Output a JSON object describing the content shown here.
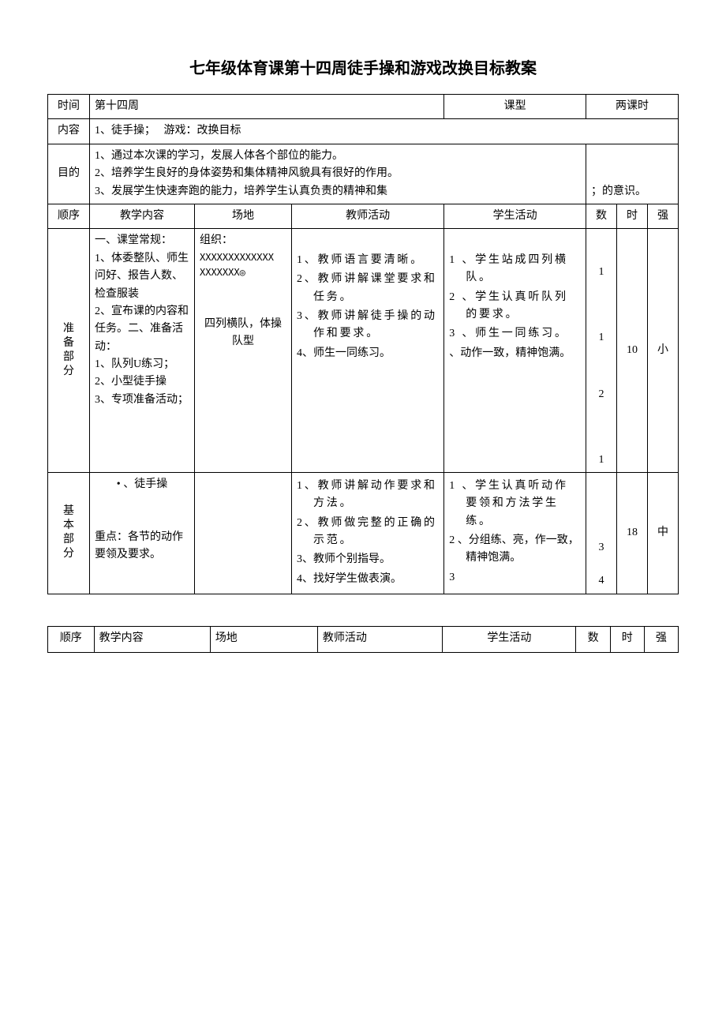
{
  "title": "七年级体育课第十四周徒手操和游戏改换目标教案",
  "header": {
    "time_label": "时间",
    "time_value": "第十四周",
    "type_label": "课型",
    "type_value": "两课时",
    "content_label": "内容",
    "content_value_1": "1、徒手操；",
    "content_value_2": "游戏：改换目标",
    "goal_label": "目的",
    "goal_1": "1、通过本次课的学习，发展人体各个部位的能力。",
    "goal_2": "2、培养学生良好的身体姿势和集体精神风貌具有很好的作用。",
    "goal_3": "3、发展学生快速奔跑的能力，培养学生认真负责的精神和集",
    "goal_suffix": "；的意识。"
  },
  "cols": {
    "order": "顺序",
    "content": "教学内容",
    "field": "场地",
    "teacher": "教师活动",
    "student": "学生活动",
    "count": "数",
    "time": "时",
    "intensity": "强"
  },
  "sections": [
    {
      "label": "准备部分",
      "content": [
        "一、课堂常规：",
        "1、体委整队、师生问好、报告人数、检查服装",
        "2、宣布课的内容和任务。二、准备活动：",
        "1、队列U练习；",
        "2、小型徒手操",
        "3、专项准备活动；"
      ],
      "field": {
        "top": "组织：",
        "pattern": "XXXXXXXXXXXXX\nXXXXXXX◎",
        "bottom": "四列横队，体操队型"
      },
      "teacher": [
        "1、教师语言要清晰。",
        "2、教师讲解课堂要求和任务。",
        "3、教师讲解徒手操的动作和要求。",
        "4、师生一同练习。"
      ],
      "student": [
        "1 、学生站成四列横队。",
        "2 、学生认真听队列的要求。",
        "3 、师生一同练习。",
        "、动作一致，精神饱满。"
      ],
      "count": [
        "1",
        "1",
        "2",
        "1"
      ],
      "time": "10",
      "intensity": "小"
    },
    {
      "label": "基本部分",
      "content": [
        "• 、徒手操",
        "",
        "重点：各节的动作要领及要求。"
      ],
      "field": {
        "text": ""
      },
      "teacher": [
        "1、教师讲解动作要求和方法。",
        "2、教师做完整的正确的示范。",
        "3、教师个别指导。",
        "4、找好学生做表演。"
      ],
      "student": [
        "1 、学生认真听动作要领和方法学生练。",
        "2 、分组练、亮，作一致，精神饱满。",
        "3"
      ],
      "count": [
        "3",
        "4"
      ],
      "time": "18",
      "intensity": "中"
    }
  ]
}
